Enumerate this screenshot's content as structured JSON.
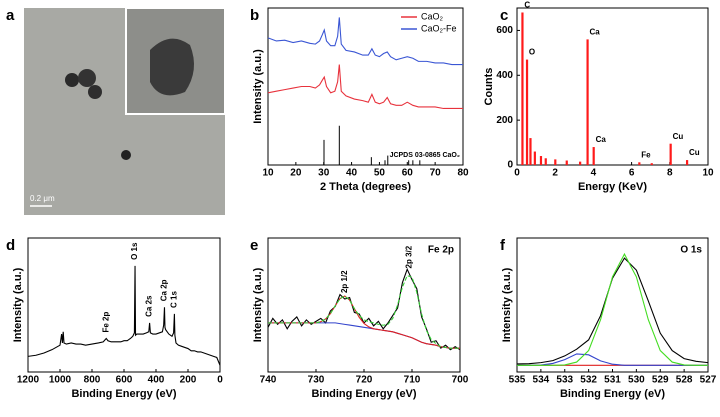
{
  "chart_data": [
    {
      "type": "image",
      "panel": "a",
      "scale_bar": "0.2 μm"
    },
    {
      "type": "line",
      "panel": "b",
      "x_label": "2 Theta (degrees)",
      "y_label": "Intensity (a.u.)",
      "xlim": [
        10,
        80
      ],
      "xticks": [
        10,
        20,
        30,
        40,
        50,
        60,
        70,
        80
      ],
      "ylim": [
        0,
        10
      ],
      "x": [
        10,
        13,
        16,
        19,
        22,
        25,
        27,
        28.5,
        29.5,
        30.2,
        31,
        32.5,
        34,
        35,
        35.6,
        36.3,
        38,
        41,
        44,
        46,
        47.3,
        48.5,
        50,
        51.5,
        52.8,
        54,
        56,
        58,
        60,
        62,
        64,
        67,
        70,
        73,
        76,
        80
      ],
      "series": [
        {
          "name": "CaO₂",
          "color": "#e8323c",
          "values": [
            4.6,
            4.7,
            4.8,
            4.9,
            5.0,
            5.0,
            4.9,
            5.1,
            5.4,
            5.6,
            5.0,
            4.6,
            4.7,
            5.3,
            6.4,
            4.7,
            4.4,
            4.2,
            4.1,
            4.0,
            4.5,
            4.0,
            3.9,
            4.0,
            4.3,
            3.9,
            3.8,
            3.8,
            4.0,
            3.8,
            3.7,
            3.7,
            3.7,
            3.6,
            3.6,
            3.6
          ]
        },
        {
          "name": "CaO₂-Fe",
          "color": "#3a56d4",
          "values": [
            8.1,
            7.9,
            7.95,
            7.8,
            7.9,
            7.75,
            7.7,
            7.9,
            8.3,
            8.6,
            7.9,
            7.6,
            7.6,
            8.2,
            9.4,
            7.7,
            7.3,
            7.2,
            7.0,
            7.0,
            7.4,
            7.0,
            6.9,
            7.1,
            7.2,
            6.9,
            6.7,
            6.8,
            6.9,
            6.8,
            6.6,
            6.6,
            6.5,
            6.5,
            6.4,
            6.4
          ]
        }
      ],
      "reference": {
        "name": "JCPDS 03-0865 CaO₂",
        "color": "#000000",
        "x": [
          30.1,
          35.6,
          47.1,
          52.0,
          53.0,
          60.5,
          62.0,
          64.5
        ],
        "values": [
          1.6,
          2.5,
          0.5,
          0.3,
          0.6,
          0.3,
          0.3,
          0.3
        ]
      }
    },
    {
      "type": "spectrum",
      "panel": "c",
      "x_label": "Energy (KeV)",
      "y_label": "Counts",
      "color": "#ff1a1a",
      "xlim": [
        0,
        10
      ],
      "xticks": [
        0,
        2,
        4,
        6,
        8,
        10
      ],
      "ylim": [
        0,
        700
      ],
      "yticks": [
        0,
        200,
        400,
        600
      ],
      "peaks": [
        {
          "label": "C",
          "x": 0.28,
          "value": 680
        },
        {
          "label": "O",
          "x": 0.52,
          "value": 470
        },
        {
          "label": null,
          "x": 0.7,
          "value": 120
        },
        {
          "label": null,
          "x": 0.93,
          "value": 60
        },
        {
          "label": null,
          "x": 1.25,
          "value": 40
        },
        {
          "label": null,
          "x": 1.5,
          "value": 30
        },
        {
          "label": null,
          "x": 2.0,
          "value": 25
        },
        {
          "label": null,
          "x": 2.6,
          "value": 20
        },
        {
          "label": null,
          "x": 3.3,
          "value": 15
        },
        {
          "label": "Ca",
          "x": 3.69,
          "value": 560
        },
        {
          "label": "Ca",
          "x": 4.01,
          "value": 80
        },
        {
          "label": "Fe",
          "x": 6.4,
          "value": 12
        },
        {
          "label": null,
          "x": 7.05,
          "value": 8
        },
        {
          "label": "Cu",
          "x": 8.04,
          "value": 95
        },
        {
          "label": "Cu",
          "x": 8.9,
          "value": 22
        }
      ]
    },
    {
      "type": "line",
      "panel": "d",
      "x_label": "Binding Energy (eV)",
      "y_label": "Intensity (a.u.)",
      "xlim": [
        1200,
        0
      ],
      "xticks": [
        1200,
        1000,
        800,
        600,
        400,
        200,
        0
      ],
      "ylim": [
        0,
        12
      ],
      "x": [
        1200,
        1150,
        1100,
        1050,
        1000,
        990,
        985,
        980,
        975,
        960,
        930,
        900,
        870,
        840,
        800,
        760,
        730,
        711,
        700,
        680,
        650,
        620,
        600,
        580,
        560,
        545,
        535,
        531,
        528,
        520,
        500,
        480,
        460,
        445,
        440,
        435,
        420,
        400,
        380,
        360,
        352,
        347,
        344,
        340,
        320,
        300,
        290,
        285,
        282,
        275,
        260,
        240,
        220,
        200,
        180,
        160,
        140,
        120,
        100,
        80,
        60,
        40,
        20,
        0
      ],
      "series": [
        {
          "color": "#000000",
          "values": [
            1.4,
            1.5,
            1.7,
            2.0,
            2.4,
            3.4,
            2.6,
            3.6,
            2.6,
            2.5,
            2.6,
            2.5,
            2.5,
            2.4,
            2.5,
            2.6,
            2.7,
            3.0,
            2.8,
            2.7,
            2.7,
            2.7,
            2.8,
            2.8,
            3.0,
            3.2,
            3.5,
            9.5,
            3.3,
            3.4,
            3.4,
            3.4,
            3.5,
            3.6,
            4.4,
            3.5,
            3.4,
            3.4,
            3.5,
            3.6,
            4.2,
            5.8,
            4.0,
            3.8,
            3.4,
            3.2,
            3.5,
            5.2,
            3.3,
            2.6,
            2.4,
            2.3,
            2.2,
            2.1,
            1.9,
            1.9,
            1.8,
            1.8,
            1.7,
            1.6,
            1.5,
            1.4,
            1.3,
            0.6
          ]
        }
      ],
      "annotations": [
        {
          "label": "Fe 2p",
          "x": 711
        },
        {
          "label": "O 1s",
          "x": 531
        },
        {
          "label": "Ca 2s",
          "x": 440
        },
        {
          "label": "Ca 2p",
          "x": 347
        },
        {
          "label": "C 1s",
          "x": 285
        }
      ]
    },
    {
      "type": "line",
      "panel": "e",
      "title": "Fe 2p",
      "x_label": "Binding Energy (eV)",
      "y_label": "Intensity (a.u.)",
      "xlim": [
        740,
        700
      ],
      "xticks": [
        740,
        730,
        720,
        710,
        700
      ],
      "ylim": [
        0,
        9
      ],
      "x": [
        740,
        739,
        738,
        737,
        736,
        735,
        734,
        733,
        732,
        731,
        730,
        729,
        728,
        727,
        726,
        725,
        724,
        723,
        722,
        721,
        720,
        719,
        718,
        717,
        716,
        715,
        714,
        713,
        712,
        711,
        710,
        709,
        708,
        707,
        706,
        705,
        704,
        703,
        702,
        701,
        700
      ],
      "series": [
        {
          "color": "#000000",
          "values": [
            3.0,
            3.6,
            3.2,
            3.5,
            2.9,
            3.4,
            3.7,
            3.1,
            3.5,
            3.2,
            3.4,
            3.6,
            3.3,
            4.1,
            4.4,
            5.2,
            4.9,
            5.0,
            4.0,
            3.9,
            3.3,
            3.6,
            3.1,
            3.4,
            2.9,
            3.3,
            3.8,
            4.3,
            6.0,
            6.9,
            6.2,
            5.6,
            3.7,
            2.9,
            2.0,
            2.1,
            1.6,
            1.8,
            1.5,
            1.7,
            1.5
          ]
        },
        {
          "color": "#3344cc",
          "values": [
            3.3,
            3.3,
            3.3,
            3.3,
            3.3,
            3.3,
            3.3,
            3.3,
            3.3,
            3.3,
            3.3,
            3.3,
            3.3,
            3.3,
            3.3,
            3.25,
            3.2,
            3.15,
            3.1,
            3.05,
            3.0,
            2.95,
            2.9,
            2.85,
            2.8,
            2.75,
            2.7,
            2.6,
            2.5,
            2.4,
            2.3,
            2.15,
            2.0,
            1.9,
            1.85,
            1.8,
            1.7,
            1.65,
            1.6,
            1.6,
            1.6
          ]
        },
        {
          "color": "#e02020",
          "values": [
            3.3,
            3.3,
            3.3,
            3.3,
            3.3,
            3.3,
            3.3,
            3.3,
            3.3,
            3.3,
            3.3,
            3.38,
            3.56,
            3.92,
            4.45,
            4.93,
            5.1,
            4.83,
            4.25,
            3.67,
            3.26,
            3.03,
            2.9,
            2.85,
            2.8,
            2.75,
            2.7,
            2.6,
            2.5,
            2.4,
            2.3,
            2.15,
            2.0,
            1.9,
            1.85,
            1.8,
            1.7,
            1.65,
            1.6,
            1.6,
            1.6
          ]
        },
        {
          "color": "#33cc33",
          "dashed": true,
          "values": [
            3.3,
            3.3,
            3.3,
            3.3,
            3.3,
            3.3,
            3.3,
            3.3,
            3.3,
            3.3,
            3.3,
            3.38,
            3.56,
            3.92,
            4.45,
            4.93,
            5.1,
            4.83,
            4.25,
            3.8,
            3.5,
            3.38,
            3.3,
            3.2,
            3.14,
            3.21,
            3.6,
            4.5,
            5.7,
            6.47,
            6.37,
            5.35,
            3.9,
            2.8,
            2.18,
            1.9,
            1.7,
            1.65,
            1.6,
            1.6,
            1.6
          ]
        }
      ],
      "annotations": [
        {
          "label": "2p 1/2",
          "x": 724
        },
        {
          "label": "2p 3/2",
          "x": 710.5
        }
      ]
    },
    {
      "type": "line",
      "panel": "f",
      "title": "O 1s",
      "x_label": "Binding Energy (eV)",
      "y_label": "Intensity (a.u.)",
      "xlim": [
        535,
        527
      ],
      "xticks": [
        535,
        534,
        533,
        532,
        531,
        530,
        529,
        528,
        527
      ],
      "ylim": [
        0,
        10
      ],
      "x": [
        535,
        534.5,
        534,
        533.5,
        533,
        532.5,
        532,
        531.5,
        531,
        530.5,
        530,
        529.5,
        529,
        528.5,
        528,
        527.5,
        527
      ],
      "series": [
        {
          "color": "#e02020",
          "values": [
            0.5,
            0.5,
            0.5,
            0.5,
            0.5,
            0.5,
            0.5,
            0.5,
            0.5,
            0.5,
            0.5,
            0.5,
            0.5,
            0.5,
            0.5,
            0.5,
            0.5
          ]
        },
        {
          "color": "#3344cc",
          "values": [
            0.5,
            0.5,
            0.52,
            0.64,
            0.92,
            1.35,
            1.28,
            0.83,
            0.58,
            0.5,
            0.5,
            0.5,
            0.5,
            0.5,
            0.5,
            0.5,
            0.5
          ]
        },
        {
          "color": "#000000",
          "values": [
            0.6,
            0.62,
            0.7,
            0.85,
            1.2,
            1.7,
            2.4,
            4.2,
            7.0,
            8.5,
            7.6,
            5.3,
            2.9,
            1.6,
            1.0,
            0.8,
            0.7
          ]
        },
        {
          "color": "#44dd22",
          "values": [
            0.5,
            0.5,
            0.5,
            0.5,
            0.53,
            0.74,
            1.6,
            3.9,
            7.1,
            8.8,
            7.1,
            3.9,
            1.6,
            0.74,
            0.53,
            0.5,
            0.5
          ]
        }
      ]
    }
  ]
}
